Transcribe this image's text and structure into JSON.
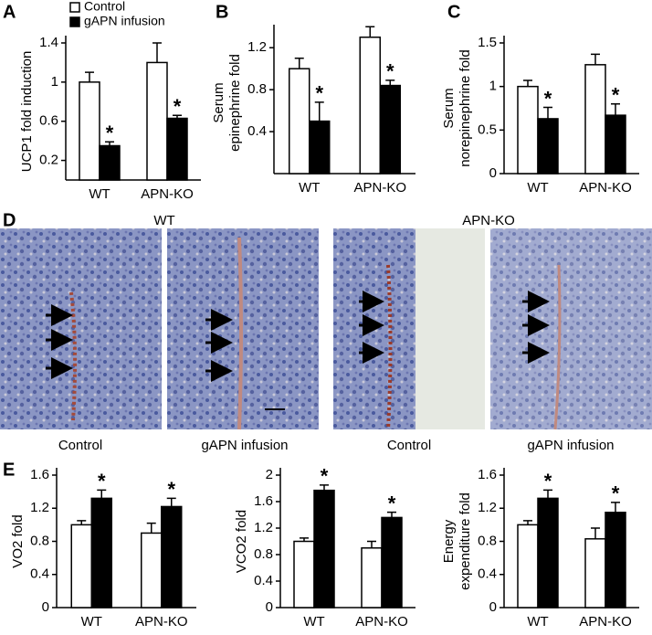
{
  "chart_data": [
    {
      "type": "bar",
      "panel": "A",
      "ylabel": [
        "UCP1 fold induction"
      ],
      "categories": [
        "WT",
        "APN-KO"
      ],
      "series": [
        {
          "name": "Control",
          "color": "#ffffff",
          "values": [
            1.0,
            1.2
          ],
          "errors": [
            0.1,
            0.2
          ]
        },
        {
          "name": "gAPN infusion",
          "color": "#000000",
          "values": [
            0.35,
            0.63
          ],
          "errors": [
            0.04,
            0.03
          ],
          "markers": [
            "*",
            "*"
          ]
        }
      ],
      "ylim": [
        0,
        1.4
      ],
      "yticks": [
        0.2,
        0.6,
        1,
        1.4
      ]
    },
    {
      "type": "bar",
      "panel": "B",
      "ylabel": [
        "Serum",
        "epinephrine fold"
      ],
      "categories": [
        "WT",
        "APN-KO"
      ],
      "series": [
        {
          "color": "#ffffff",
          "values": [
            1.0,
            1.3
          ],
          "errors": [
            0.1,
            0.1
          ]
        },
        {
          "color": "#000000",
          "values": [
            0.5,
            0.84
          ],
          "errors": [
            0.18,
            0.05
          ],
          "markers": [
            "*",
            "*"
          ]
        }
      ],
      "ylim": [
        0,
        1.35
      ],
      "yticks": [
        0.4,
        0.8,
        1.2
      ]
    },
    {
      "type": "bar",
      "panel": "C",
      "ylabel": [
        "Serum",
        "norepinephrine fold"
      ],
      "categories": [
        "WT",
        "APN-KO"
      ],
      "series": [
        {
          "color": "#ffffff",
          "values": [
            1.0,
            1.25
          ],
          "errors": [
            0.07,
            0.12
          ]
        },
        {
          "color": "#000000",
          "values": [
            0.63,
            0.67
          ],
          "errors": [
            0.13,
            0.13
          ],
          "markers": [
            "*",
            "*"
          ]
        }
      ],
      "ylim": [
        0,
        1.5
      ],
      "yticks": [
        0,
        0.5,
        1,
        1.5
      ]
    },
    {
      "type": "bar",
      "panel": "E",
      "ylabel": [
        "VO2 fold"
      ],
      "categories": [
        "WT",
        "APN-KO"
      ],
      "series": [
        {
          "color": "#ffffff",
          "values": [
            1.0,
            0.9
          ],
          "errors": [
            0.05,
            0.12
          ]
        },
        {
          "color": "#000000",
          "values": [
            1.32,
            1.22
          ],
          "errors": [
            0.1,
            0.1
          ],
          "markers": [
            "*",
            "*"
          ]
        }
      ],
      "ylim": [
        0,
        1.6
      ],
      "yticks": [
        0,
        0.4,
        0.8,
        1.2,
        1.6
      ]
    },
    {
      "type": "bar",
      "ylabel": [
        "VCO2 fold"
      ],
      "categories": [
        "WT",
        "APN-KO"
      ],
      "series": [
        {
          "color": "#ffffff",
          "values": [
            1.0,
            0.9
          ],
          "errors": [
            0.05,
            0.1
          ]
        },
        {
          "color": "#000000",
          "values": [
            1.77,
            1.36
          ],
          "errors": [
            0.08,
            0.08
          ],
          "markers": [
            "*",
            "*"
          ]
        }
      ],
      "ylim": [
        0,
        2
      ],
      "yticks": [
        0,
        0.4,
        0.8,
        1.2,
        1.6,
        2
      ]
    },
    {
      "type": "bar",
      "ylabel": [
        "Energy",
        "expenditure fold"
      ],
      "categories": [
        "WT",
        "APN-KO"
      ],
      "series": [
        {
          "color": "#ffffff",
          "values": [
            1.0,
            0.83
          ],
          "errors": [
            0.05,
            0.13
          ]
        },
        {
          "color": "#000000",
          "values": [
            1.32,
            1.15
          ],
          "errors": [
            0.1,
            0.12
          ],
          "markers": [
            "*",
            "*"
          ]
        }
      ],
      "ylim": [
        0,
        1.6
      ],
      "yticks": [
        0,
        0.4,
        0.8,
        1.2,
        1.6
      ]
    }
  ],
  "panel_d": {
    "letter": "D",
    "groups": [
      "WT",
      "APN-KO"
    ],
    "conditions": [
      "Control",
      "gAPN infusion",
      "Control",
      "gAPN infusion"
    ]
  }
}
